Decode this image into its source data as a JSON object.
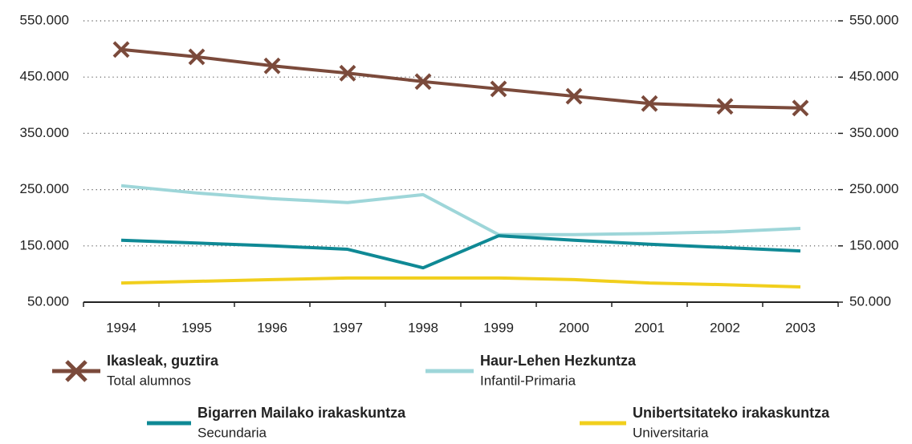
{
  "chart_data": {
    "type": "line",
    "categories": [
      "1994",
      "1995",
      "1996",
      "1997",
      "1998",
      "1999",
      "2000",
      "2001",
      "2002",
      "2003"
    ],
    "series": [
      {
        "name": "Ikasleak, guztira",
        "name_es": "Total alumnos",
        "color": "#7b4a3b",
        "marker": "x",
        "values": [
          499000,
          486000,
          470000,
          457000,
          442000,
          429000,
          416000,
          403000,
          398000,
          395000
        ]
      },
      {
        "name": "Haur-Lehen Hezkuntza",
        "name_es": "Infantil-Primaria",
        "color": "#9ed6d9",
        "values": [
          257000,
          244000,
          234000,
          227000,
          241000,
          170000,
          170000,
          172000,
          175000,
          181000
        ]
      },
      {
        "name": "Bigarren Mailako irakaskuntza",
        "name_es": "Secundaria",
        "color": "#0f8995",
        "values": [
          160000,
          155000,
          150000,
          144000,
          111000,
          168000,
          160000,
          153000,
          147000,
          141000
        ]
      },
      {
        "name": "Unibertsitateko irakaskuntza",
        "name_es": "Universitaria",
        "color": "#f1cf1d",
        "values": [
          84000,
          87000,
          90000,
          93000,
          93000,
          93000,
          90000,
          84000,
          81000,
          77000
        ]
      }
    ],
    "ylim": [
      50000,
      550000
    ],
    "yticks": [
      {
        "value": 50000,
        "label": "50.000"
      },
      {
        "value": 150000,
        "label": "150.000"
      },
      {
        "value": 250000,
        "label": "250.000"
      },
      {
        "value": 350000,
        "label": "350.000"
      },
      {
        "value": 450000,
        "label": "450.000"
      },
      {
        "value": 550000,
        "label": "550.000"
      }
    ],
    "y2lim": [
      50000,
      550000
    ],
    "y2ticks": [
      {
        "value": 50000,
        "label": "50.000"
      },
      {
        "value": 150000,
        "label": "150.000"
      },
      {
        "value": 250000,
        "label": "250.000"
      },
      {
        "value": 350000,
        "label": "350.000"
      },
      {
        "value": 450000,
        "label": "450.000"
      },
      {
        "value": 550000,
        "label": "550.000"
      }
    ],
    "grid": true
  }
}
